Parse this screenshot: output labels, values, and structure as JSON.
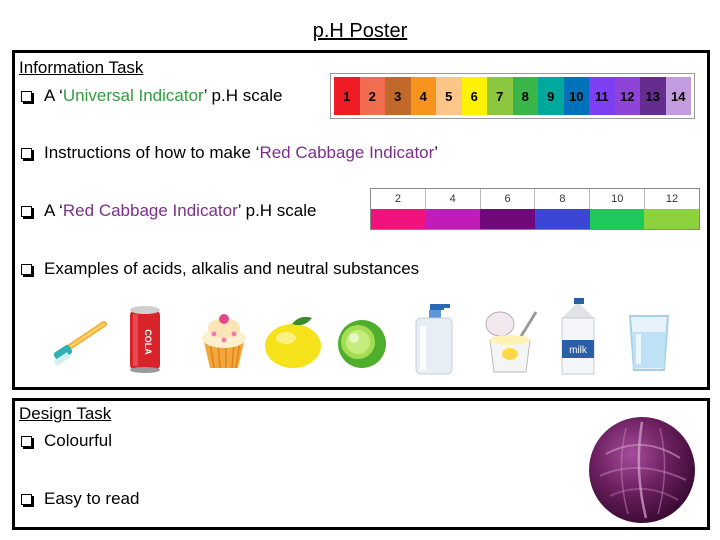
{
  "poster": {
    "title": "p.H Poster"
  },
  "info": {
    "heading": "Information Task",
    "items": [
      {
        "prefix": "A ‘",
        "highlight": "Universal Indicator",
        "suffix": "’ p.H scale"
      },
      {
        "prefix": "Instructions of how to make ‘",
        "highlight": "Red Cabbage Indicator",
        "suffix": "’"
      },
      {
        "prefix": "A ‘",
        "highlight": "Red Cabbage Indicator",
        "suffix": "’ p.H scale"
      },
      {
        "text": "Examples of acids, alkalis and neutral substances"
      }
    ]
  },
  "universal_scale": {
    "labels": [
      "1",
      "2",
      "3",
      "4",
      "5",
      "6",
      "7",
      "8",
      "9",
      "10",
      "11",
      "12",
      "13",
      "14"
    ],
    "colors": [
      "#ee1c25",
      "#f26c4f",
      "#c1692b",
      "#f7941d",
      "#fdc689",
      "#fff200",
      "#8dc63f",
      "#39b54a",
      "#00a99d",
      "#0072bc",
      "#7e3ff2",
      "#8e44d6",
      "#662d91",
      "#c39bdf"
    ]
  },
  "cabbage_scale": {
    "labels": [
      "2",
      "4",
      "6",
      "8",
      "10",
      "12"
    ],
    "colors": [
      "#f0127d",
      "#c11cb8",
      "#6e0a7a",
      "#3b46d6",
      "#1fc85b",
      "#8cd23c"
    ]
  },
  "substances": [
    "toothbrush-icon",
    "cola-can-icon",
    "cupcake-icon",
    "lemon-icon",
    "lime-icon",
    "soap-dispenser-icon",
    "yogurt-icon",
    "milk-carton-icon",
    "water-glass-icon"
  ],
  "design": {
    "heading": "Design Task",
    "items": [
      "Colourful",
      "Easy to read"
    ]
  }
}
